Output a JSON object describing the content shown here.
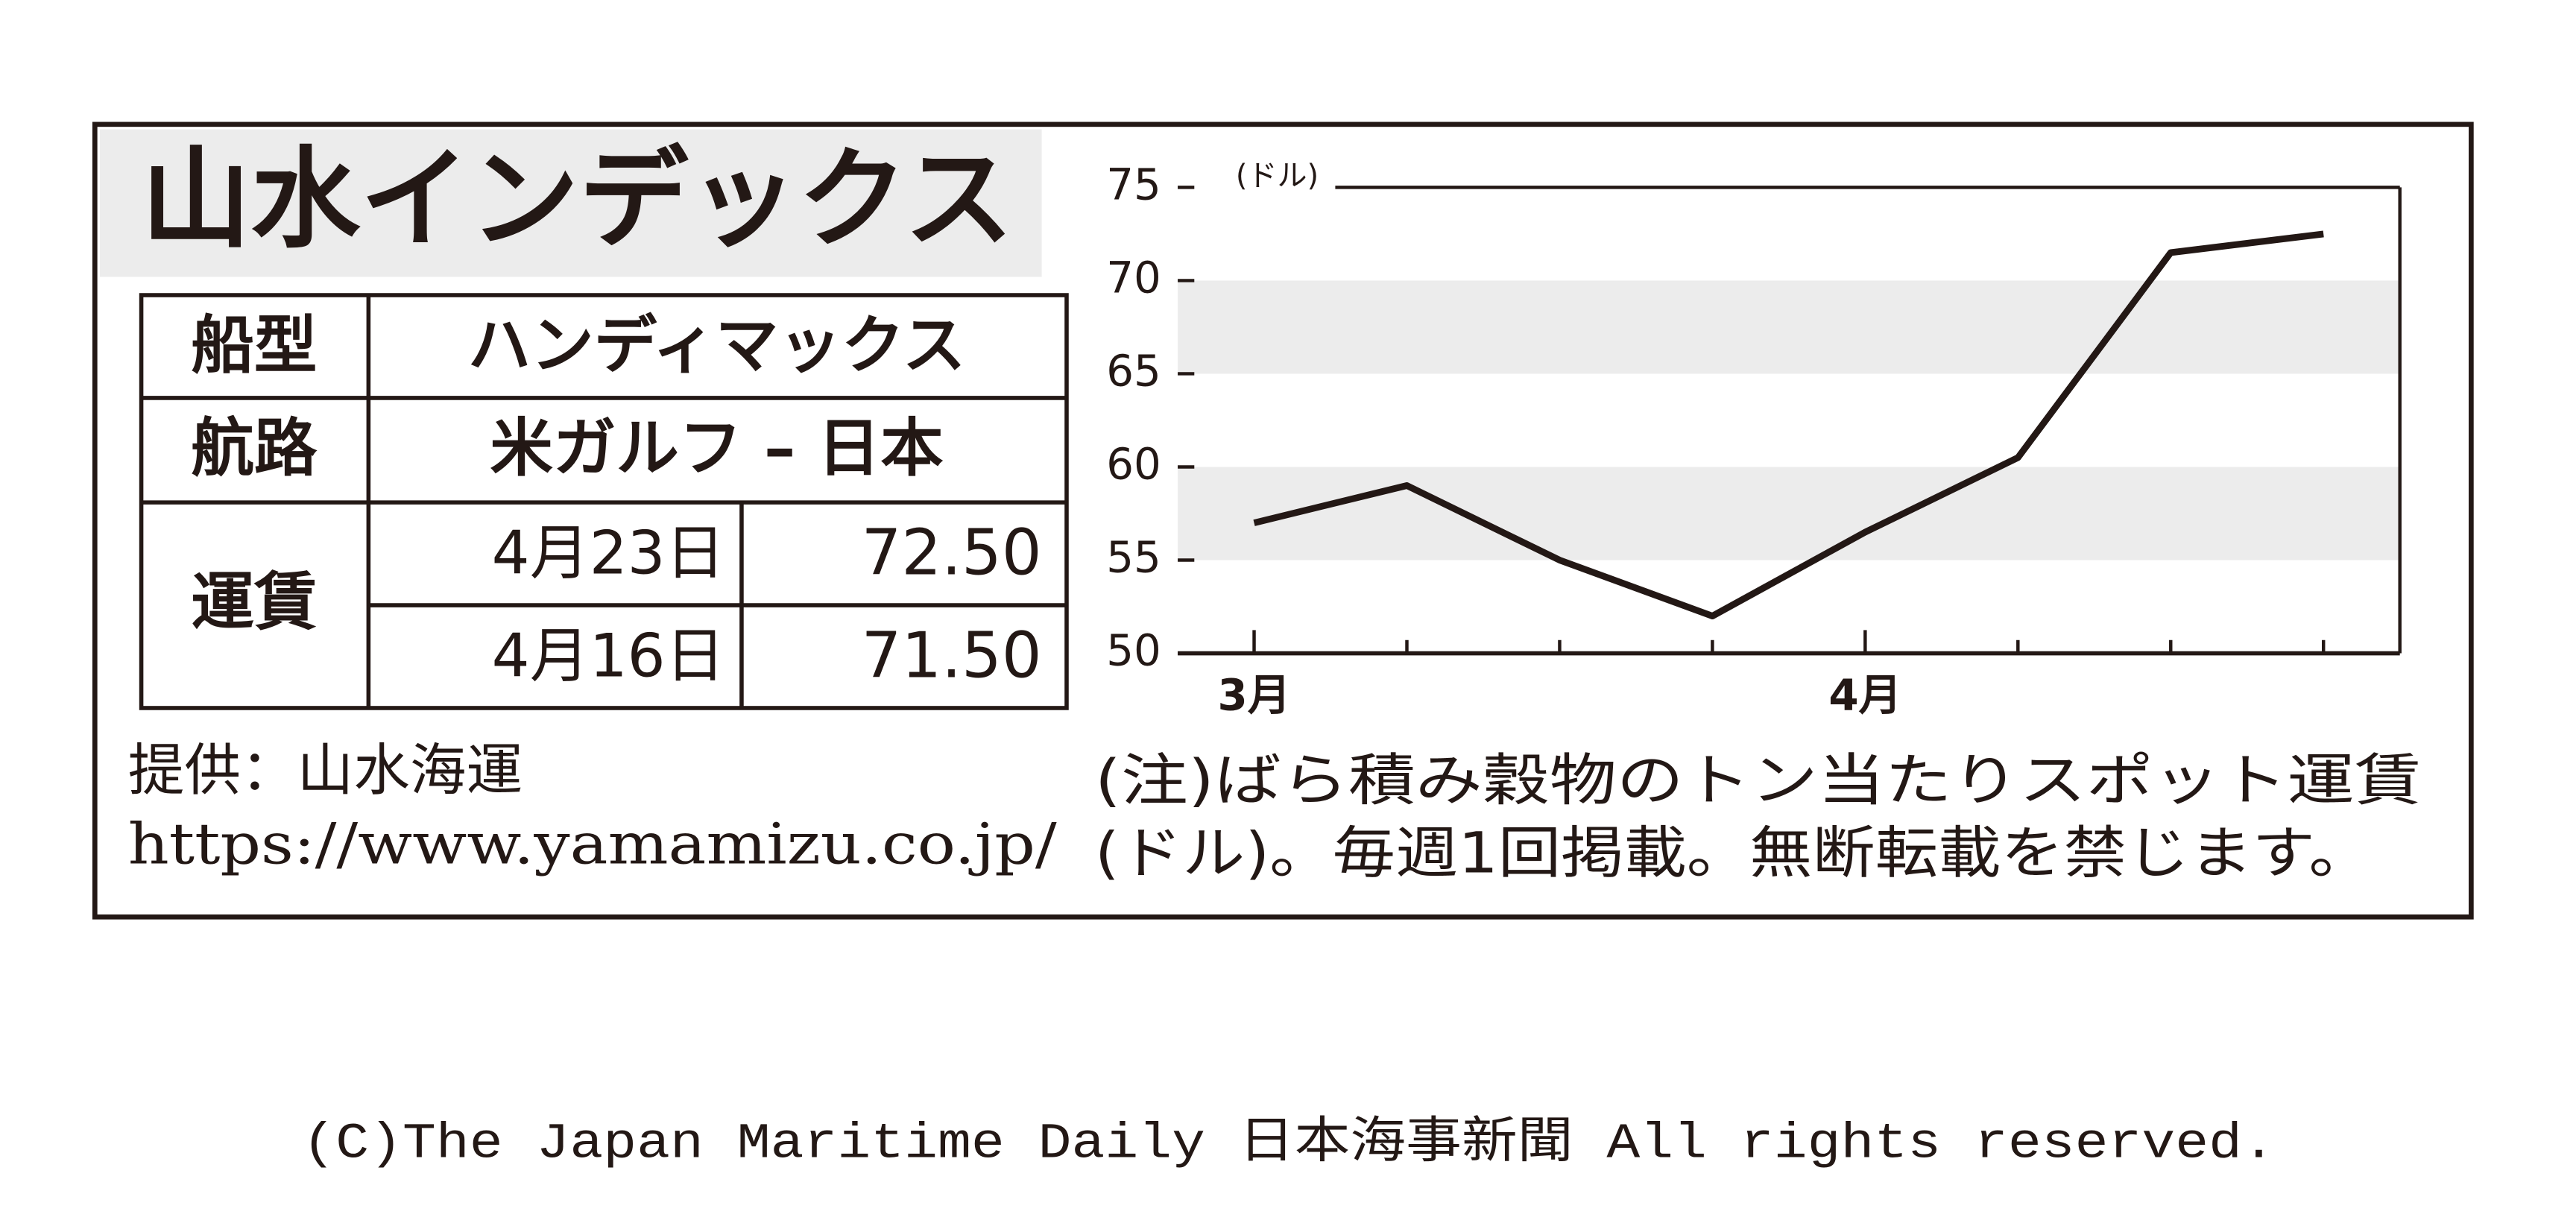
{
  "title": "山水インデックス",
  "table": {
    "rows": [
      [
        "船型",
        "ハンディマックス"
      ],
      [
        "航路",
        "米ガルフ – 日本"
      ],
      [
        "運賃",
        "4月23日",
        "72.50"
      ],
      [
        "4月16日",
        "71.50"
      ]
    ]
  },
  "source": [
    "提供：山水海運",
    "https://www.yamamizu.co.jp/"
  ],
  "note": [
    "(注)ばら積み穀物のトン当たりスポット運賃",
    "(ドル)。毎週1回掲載。無断転載を禁じます。"
  ],
  "copyright": "(C)The Japan Maritime Daily 日本海事新聞 All rights reserved.",
  "chart_data": {
    "type": "line",
    "y_unit": "(ドル)",
    "categories": [
      "3月",
      null,
      null,
      null,
      "4月",
      null,
      null,
      null
    ],
    "values": [
      57,
      59,
      55,
      52,
      56.5,
      60.5,
      71.5,
      72.5
    ],
    "color": "#231815",
    "ylim": [
      50,
      75
    ],
    "yticks": [
      50,
      55,
      60,
      65,
      70,
      75
    ],
    "grid": "bands"
  }
}
